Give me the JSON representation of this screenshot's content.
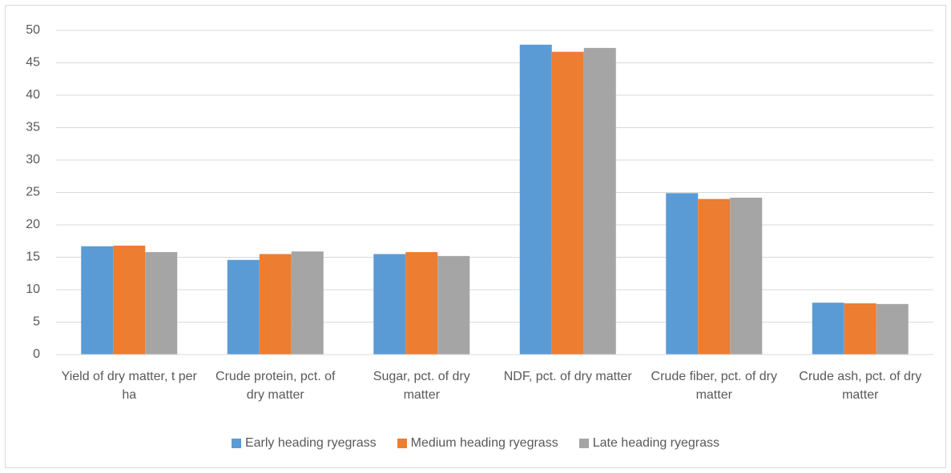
{
  "chart_data": {
    "type": "bar",
    "categories": [
      "Yield of dry matter, t per ha",
      "Crude protein, pct. of dry matter",
      "Sugar, pct. of dry matter",
      "NDF, pct. of dry matter",
      "Crude fiber, pct. of dry matter",
      "Crude ash, pct. of dry matter"
    ],
    "series": [
      {
        "name": "Early heading ryegrass",
        "color": "#5b9bd5",
        "values": [
          16.7,
          14.6,
          15.5,
          47.8,
          24.9,
          8.0
        ]
      },
      {
        "name": "Medium heading ryegrass",
        "color": "#ed7d31",
        "values": [
          16.8,
          15.5,
          15.8,
          46.7,
          24.0,
          7.9
        ]
      },
      {
        "name": "Late heading ryegrass",
        "color": "#a5a5a5",
        "values": [
          15.8,
          15.9,
          15.2,
          47.3,
          24.2,
          7.8
        ]
      }
    ],
    "ylim": [
      0,
      50
    ],
    "yticks": [
      0,
      5,
      10,
      15,
      20,
      25,
      30,
      35,
      40,
      45,
      50
    ],
    "grid": true,
    "legend": "bottom"
  }
}
